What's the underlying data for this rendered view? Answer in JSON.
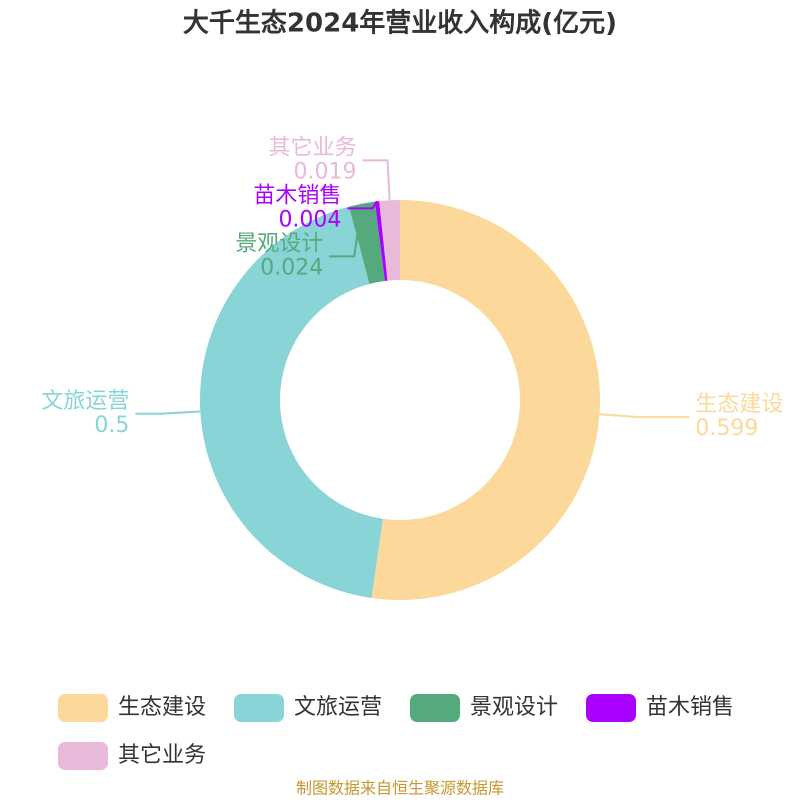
{
  "chart_data": {
    "type": "donut",
    "title": "大千生态2024年营业收入构成(亿元)",
    "categories": [
      "生态建设",
      "文旅运营",
      "景观设计",
      "苗木销售",
      "其它业务"
    ],
    "values": [
      0.599,
      0.5,
      0.024,
      0.004,
      0.019
    ],
    "colors": [
      "#fdd89b",
      "#88d4d7",
      "#55aa7d",
      "#aa00ff",
      "#e8b9d9"
    ],
    "source": "制图数据来自恒生聚源数据库"
  }
}
